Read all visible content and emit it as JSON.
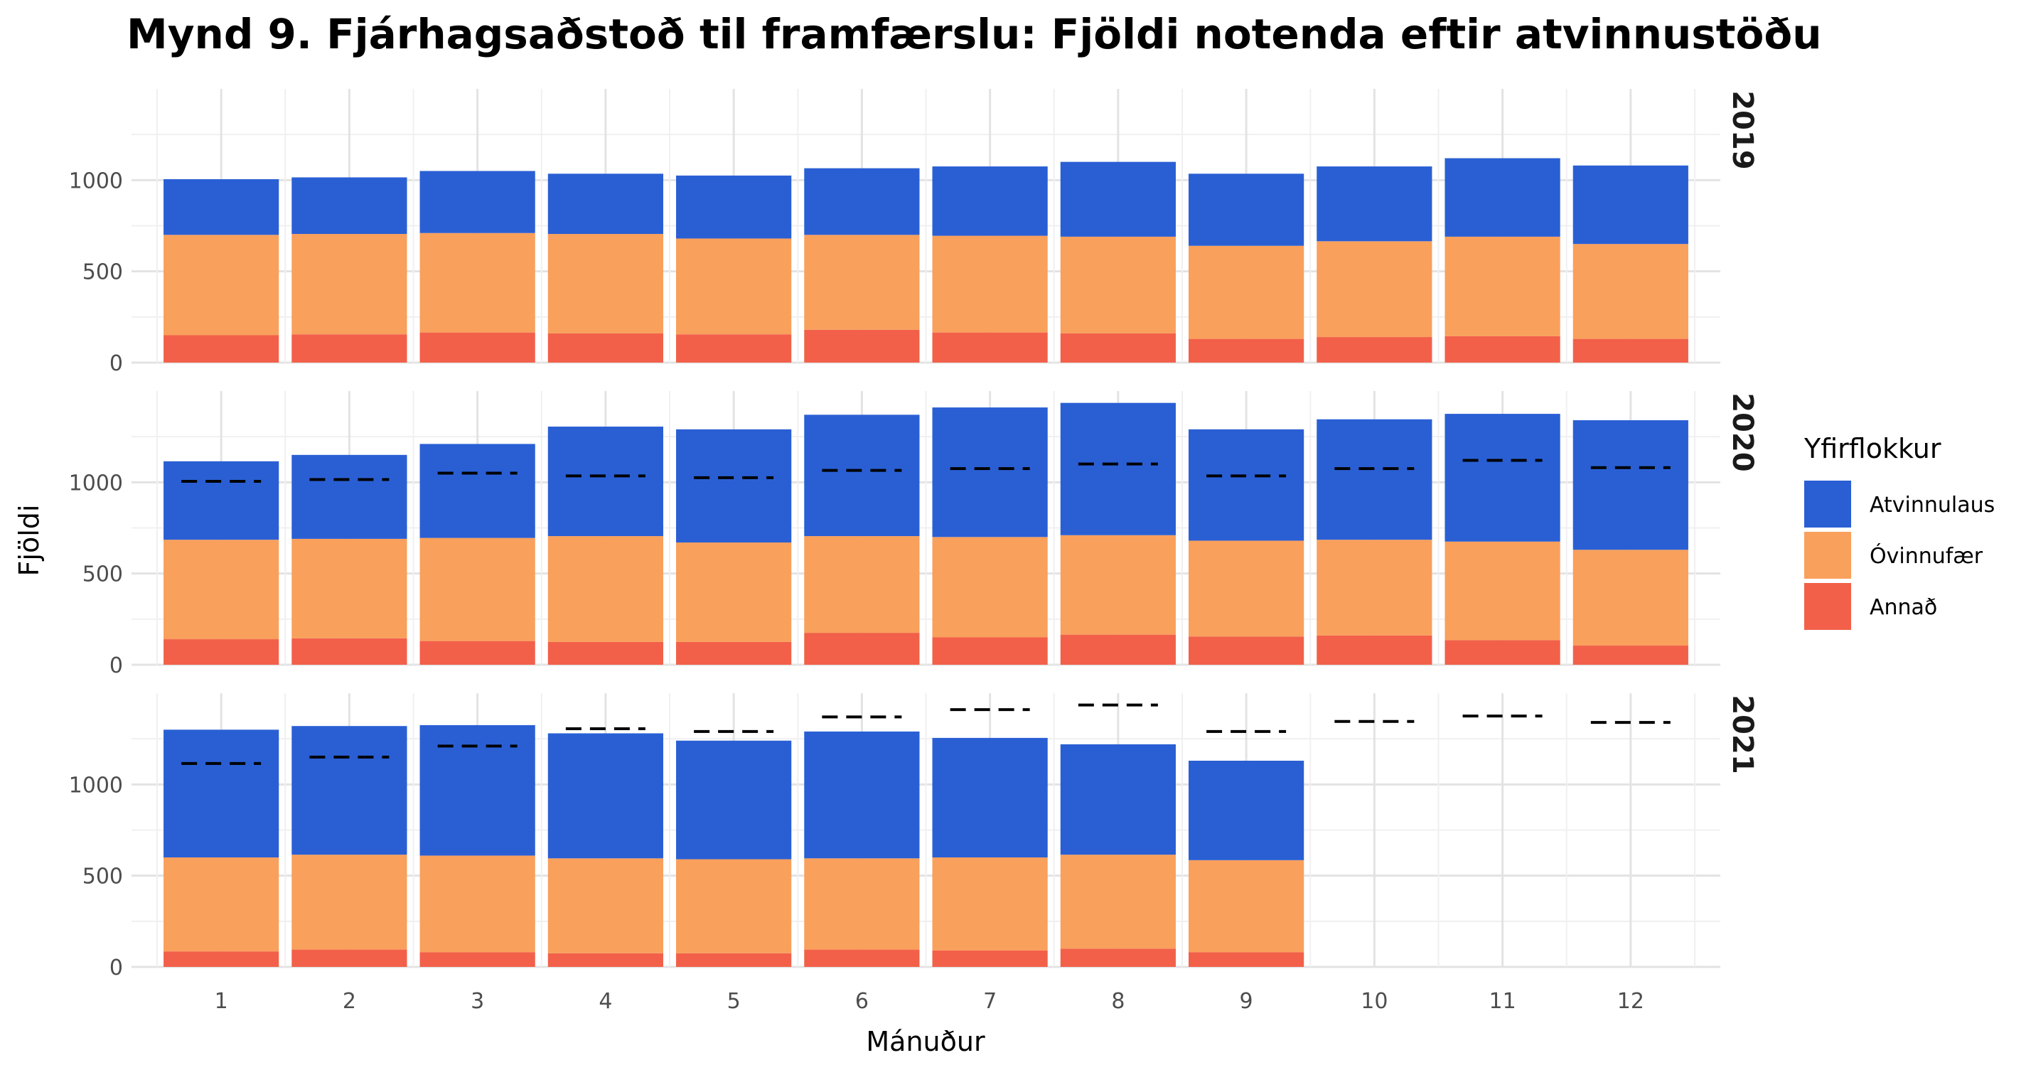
{
  "title": "Mynd 9. Fjárhagsaðstoð til framfærslu: Fjöldi notenda eftir atvinnustöðu",
  "chart_data": {
    "type": "bar",
    "stacked": true,
    "title": "Mynd 9. Fjárhagsaðstoð til framfærslu: Fjöldi notenda eftir atvinnustöðu",
    "xlabel": "Mánuður",
    "ylabel": "Fjöldi",
    "ylim": [
      0,
      1500
    ],
    "yticks": [
      0,
      500,
      1000
    ],
    "categories": [
      "1",
      "2",
      "3",
      "4",
      "5",
      "6",
      "7",
      "8",
      "9",
      "10",
      "11",
      "12"
    ],
    "legend": {
      "title": "Yfirflokkur",
      "placement": "right",
      "entries": [
        {
          "name": "Atvinnulaus",
          "color": "#2a5fd4"
        },
        {
          "name": "Óvinnufær",
          "color": "#f9a05c"
        },
        {
          "name": "Annað",
          "color": "#f2604a"
        }
      ]
    },
    "reference_line": "dashed black line marks the previous year's total for the same month",
    "grid": true,
    "panels": [
      {
        "label": "2019",
        "series": [
          {
            "name": "Annað",
            "values": [
              150,
              155,
              165,
              160,
              155,
              180,
              165,
              160,
              130,
              140,
              145,
              130
            ]
          },
          {
            "name": "Óvinnufær",
            "values": [
              550,
              550,
              545,
              545,
              525,
              520,
              530,
              530,
              510,
              525,
              545,
              520
            ]
          },
          {
            "name": "Atvinnulaus",
            "values": [
              305,
              310,
              340,
              330,
              345,
              365,
              380,
              410,
              395,
              410,
              430,
              430
            ]
          }
        ],
        "prev_year_totals": []
      },
      {
        "label": "2020",
        "series": [
          {
            "name": "Annað",
            "values": [
              140,
              145,
              130,
              125,
              125,
              175,
              150,
              165,
              155,
              160,
              135,
              105
            ]
          },
          {
            "name": "Óvinnufær",
            "values": [
              545,
              545,
              565,
              580,
              545,
              530,
              550,
              545,
              525,
              525,
              540,
              525
            ]
          },
          {
            "name": "Atvinnulaus",
            "values": [
              430,
              460,
              515,
              600,
              620,
              665,
              710,
              725,
              610,
              660,
              700,
              710
            ]
          }
        ],
        "prev_year_totals": [
          1005,
          1015,
          1050,
          1035,
          1025,
          1065,
          1075,
          1100,
          1035,
          1075,
          1120,
          1080
        ]
      },
      {
        "label": "2021",
        "series": [
          {
            "name": "Annað",
            "values": [
              85,
              95,
              80,
              75,
              75,
              95,
              90,
              100,
              80
            ]
          },
          {
            "name": "Óvinnufær",
            "values": [
              515,
              520,
              530,
              520,
              515,
              500,
              510,
              515,
              505
            ]
          },
          {
            "name": "Atvinnulaus",
            "values": [
              700,
              705,
              715,
              685,
              650,
              695,
              655,
              605,
              545
            ]
          }
        ],
        "prev_year_totals": [
          1115,
          1150,
          1210,
          1305,
          1290,
          1370,
          1410,
          1435,
          1290,
          1345,
          1375,
          1340
        ]
      }
    ]
  }
}
